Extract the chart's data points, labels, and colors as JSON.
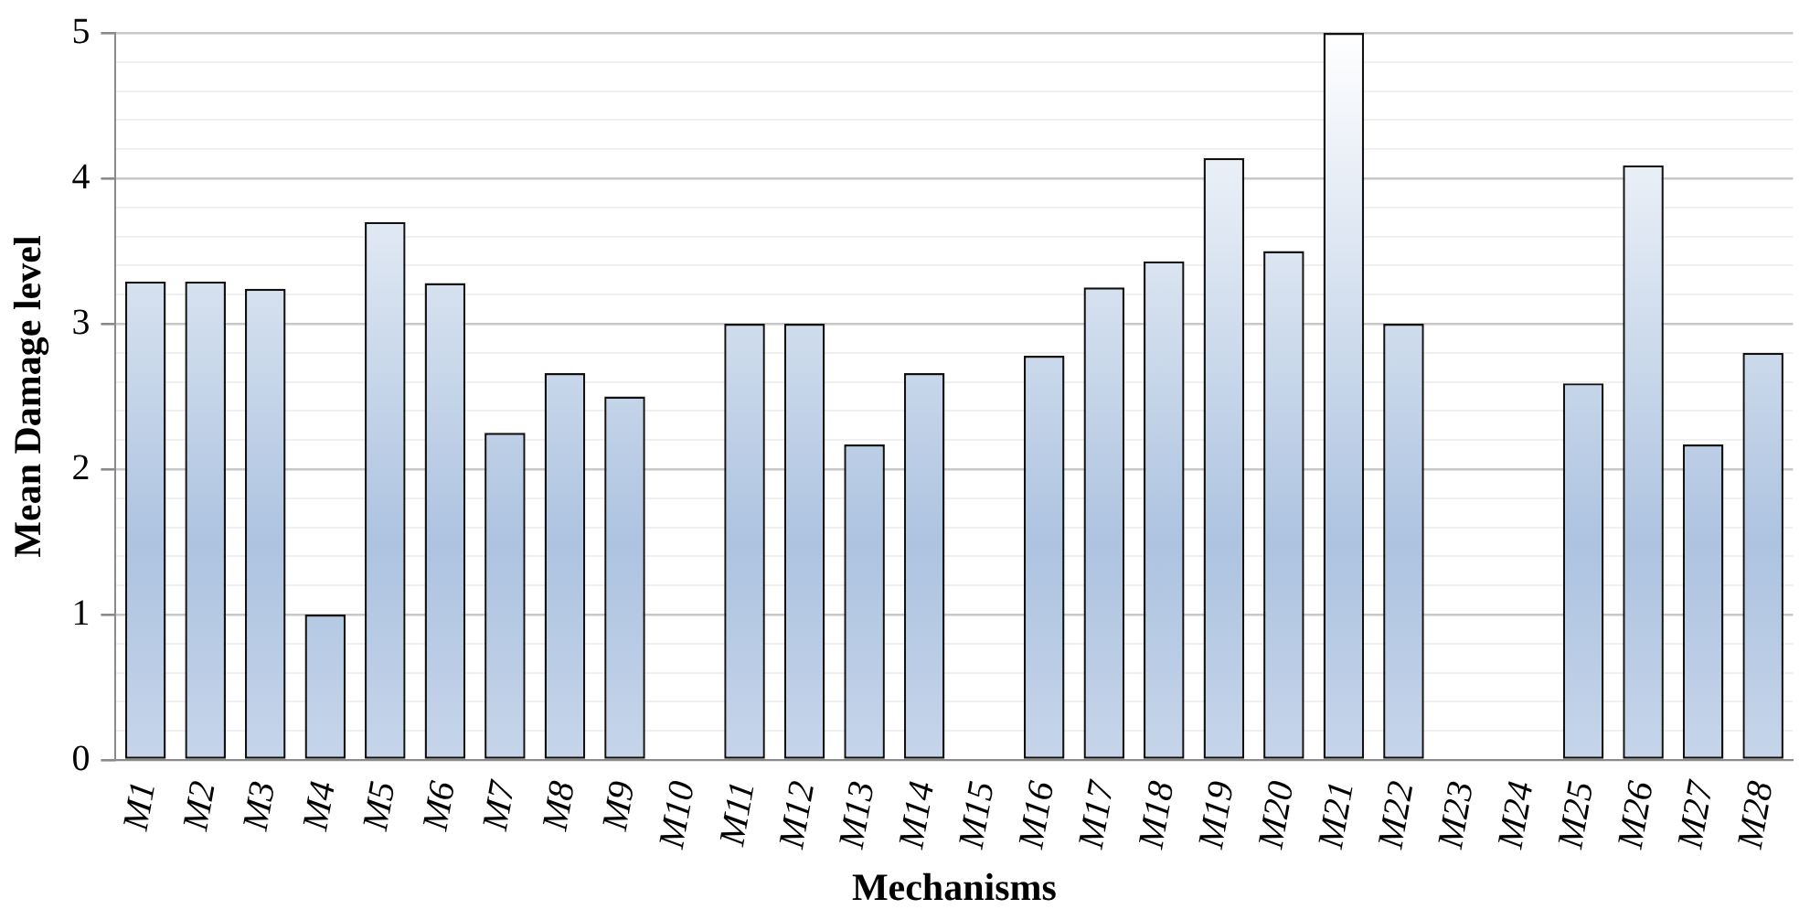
{
  "chart_data": {
    "type": "bar",
    "xlabel": "Mechanisms",
    "ylabel": "Mean Damage level",
    "categories": [
      "M1",
      "M2",
      "M3",
      "M4",
      "M5",
      "M6",
      "M7",
      "M8",
      "M9",
      "M10",
      "M11",
      "M12",
      "M13",
      "M14",
      "M15",
      "M16",
      "M17",
      "M18",
      "M19",
      "M20",
      "M21",
      "M22",
      "M23",
      "M24",
      "M25",
      "M26",
      "M27",
      "M28"
    ],
    "values": [
      3.29,
      3.29,
      3.24,
      1,
      3.7,
      3.28,
      2.25,
      2.66,
      2.5,
      0,
      3,
      3,
      2.17,
      2.66,
      0,
      2.78,
      3.25,
      3.43,
      4.14,
      3.5,
      5,
      3,
      0,
      0,
      2.59,
      4.09,
      2.17,
      2.8
    ],
    "color": "#adc3e0",
    "ylim": [
      0,
      5
    ],
    "yticks": [
      0,
      {
        "value": 0.2,
        "label": null
      },
      {
        "value": 0.4,
        "label": null
      },
      {
        "value": 0.6,
        "label": null
      },
      {
        "value": 0.8,
        "label": null
      },
      1,
      {
        "value": 1.2,
        "label": null
      },
      {
        "value": 1.4,
        "label": null
      },
      {
        "value": 1.6,
        "label": null
      },
      {
        "value": 1.8,
        "label": null
      },
      2,
      {
        "value": 2.2,
        "label": null
      },
      {
        "value": 2.4,
        "label": null
      },
      {
        "value": 2.6,
        "label": null
      },
      {
        "value": 2.8,
        "label": null
      },
      3,
      {
        "value": 3.2,
        "label": null
      },
      {
        "value": 3.4,
        "label": null
      },
      {
        "value": 3.6,
        "label": null
      },
      {
        "value": 3.8,
        "label": null
      },
      4,
      {
        "value": 4.2,
        "label": null
      },
      {
        "value": 4.4,
        "label": null
      },
      {
        "value": 4.6,
        "label": null
      },
      {
        "value": 4.8,
        "label": null
      },
      5
    ],
    "grid": "y",
    "legend": false
  }
}
